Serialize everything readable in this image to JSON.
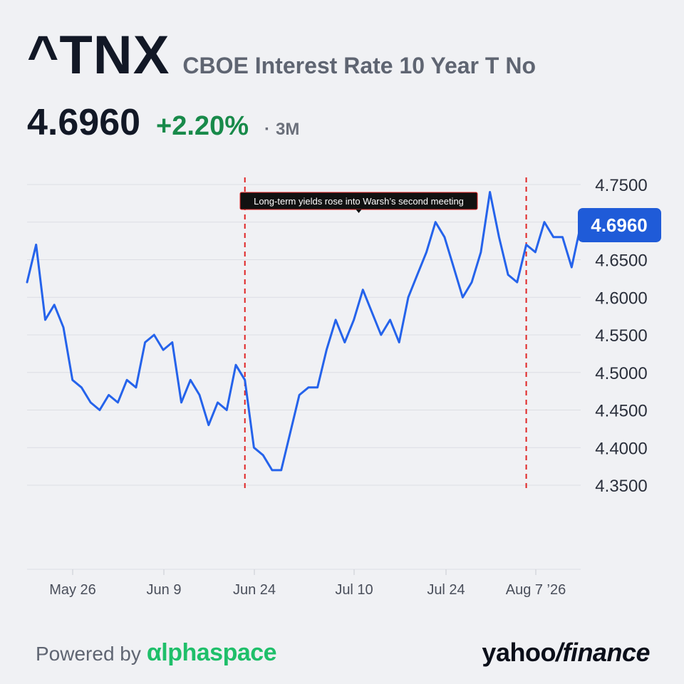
{
  "header": {
    "ticker": "^TNX",
    "name": "CBOE Interest Rate 10 Year T No",
    "price": "4.6960",
    "change": "+2.20%",
    "period_dot": "·",
    "period": "3M"
  },
  "footer": {
    "powered_by": "Powered by",
    "powered_brand": "αlphaspace",
    "brand_yahoo": "yahoo",
    "brand_slash": "/",
    "brand_finance": "finance"
  },
  "colors": {
    "line": "#2563eb",
    "price_label_bg": "#1f5bd8",
    "event_line": "#e02424",
    "grid": "#dcdee3",
    "change_positive": "#188a4a"
  },
  "chart_data": {
    "type": "line",
    "title": "",
    "xlabel": "",
    "ylabel": "",
    "ylim": [
      4.24,
      4.75
    ],
    "y_ticks": [
      "4.7500",
      "4.7000",
      "4.6500",
      "4.6000",
      "4.5500",
      "4.5000",
      "4.4500",
      "4.4000",
      "4.3500"
    ],
    "x_tick_labels": [
      "May 26",
      "Jun 9",
      "Jun 24",
      "Jul 10",
      "Jul 24",
      "Aug 7 ’26"
    ],
    "last_value_label": "4.6960",
    "grid": true,
    "series": [
      {
        "values": [
          4.62,
          4.67,
          4.57,
          4.59,
          4.56,
          4.49,
          4.48,
          4.46,
          4.45,
          4.47,
          4.46,
          4.49,
          4.48,
          4.54,
          4.55,
          4.53,
          4.54,
          4.46,
          4.49,
          4.47,
          4.43,
          4.46,
          4.45,
          4.51,
          4.49,
          4.4,
          4.39,
          4.37,
          4.37,
          4.42,
          4.47,
          4.48,
          4.48,
          4.53,
          4.57,
          4.54,
          4.57,
          4.61,
          4.58,
          4.55,
          4.57,
          4.54,
          4.6,
          4.63,
          4.66,
          4.7,
          4.68,
          4.64,
          4.6,
          4.62,
          4.66,
          4.74,
          4.68,
          4.63,
          4.62,
          4.67,
          4.66,
          4.7,
          4.68,
          4.68,
          4.64,
          4.696
        ]
      }
    ],
    "annotations": [
      {
        "type": "vline",
        "index": 24
      },
      {
        "type": "vline",
        "index": 55,
        "label": "Long-term yields rose into Warsh’s second meeting"
      }
    ]
  }
}
